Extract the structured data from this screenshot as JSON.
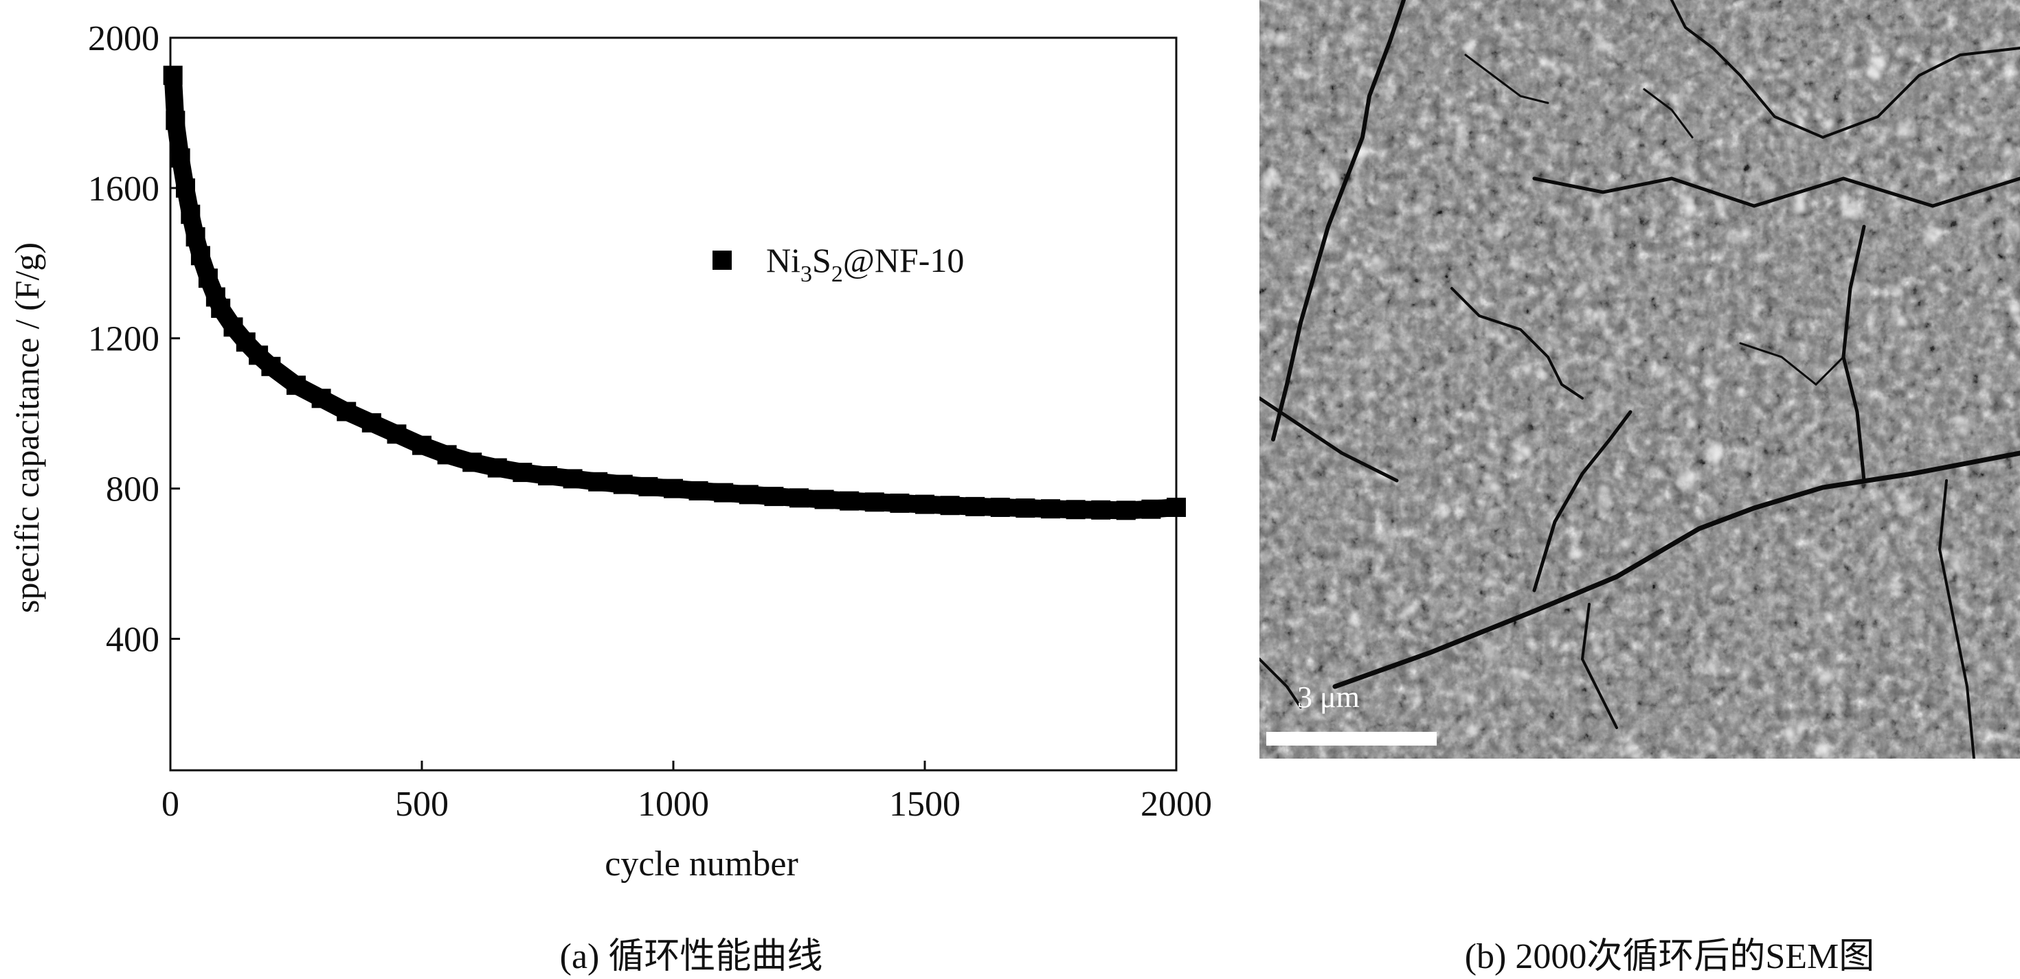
{
  "chart_data": {
    "type": "scatter",
    "xlabel": "cycle number",
    "ylabel": "specific capacitance / (F/g)",
    "xlim": [
      0,
      2000
    ],
    "ylim": [
      50,
      2000
    ],
    "x_ticks": [
      "0",
      "500",
      "1000",
      "1500",
      "2000"
    ],
    "y_ticks": [
      "400",
      "800",
      "1200",
      "1600",
      "2000"
    ],
    "legend_position": "top-right",
    "grid": false,
    "series": [
      {
        "legend_main": "Ni",
        "legend_sub1": "3",
        "legend_mid": "S",
        "legend_sub2": "2",
        "legend_tail": "@NF-10",
        "color": "#000000",
        "marker": "square",
        "x": [
          5,
          10,
          20,
          30,
          40,
          50,
          60,
          75,
          90,
          100,
          125,
          150,
          175,
          200,
          250,
          300,
          350,
          400,
          450,
          500,
          550,
          600,
          650,
          700,
          750,
          800,
          850,
          900,
          950,
          1000,
          1050,
          1100,
          1150,
          1200,
          1250,
          1300,
          1350,
          1400,
          1450,
          1500,
          1550,
          1600,
          1650,
          1700,
          1750,
          1800,
          1850,
          1900,
          1950,
          2000
        ],
        "y": [
          1900,
          1780,
          1680,
          1600,
          1530,
          1470,
          1420,
          1360,
          1310,
          1280,
          1230,
          1190,
          1155,
          1125,
          1075,
          1040,
          1005,
          975,
          945,
          915,
          890,
          870,
          855,
          843,
          834,
          826,
          818,
          811,
          805,
          800,
          794,
          789,
          784,
          779,
          775,
          771,
          767,
          764,
          761,
          758,
          755,
          752,
          750,
          748,
          746,
          744,
          743,
          742,
          745,
          750
        ]
      }
    ]
  },
  "sem": {
    "scale_label": "3 μm"
  },
  "captions": {
    "a": "(a) 循环性能曲线",
    "b": "(b) 2000次循环后的SEM图"
  }
}
